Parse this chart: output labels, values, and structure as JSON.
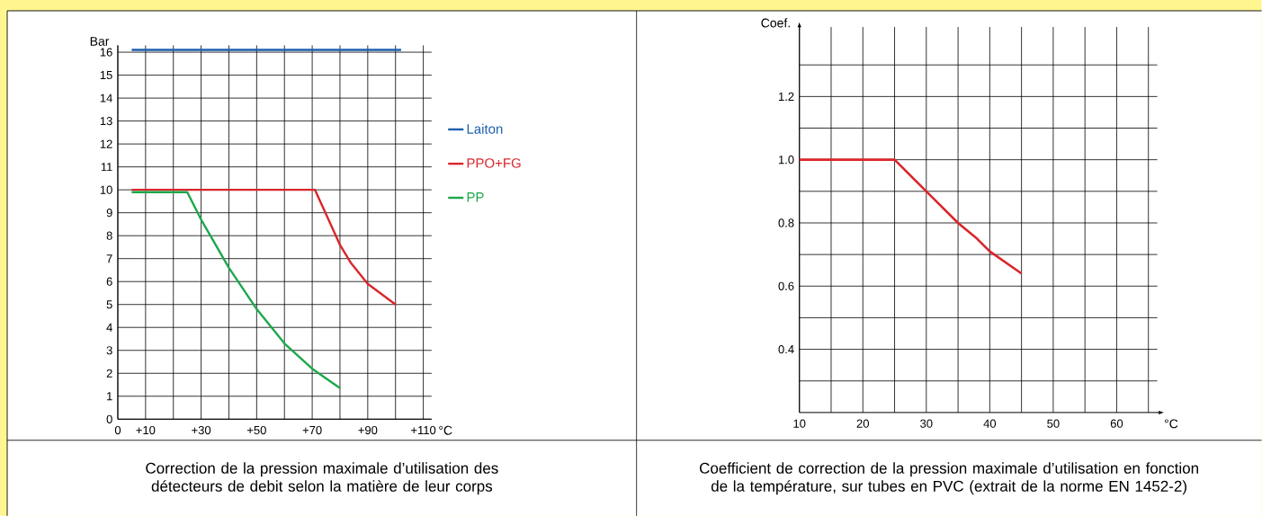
{
  "chart_data": [
    {
      "type": "line",
      "ylabel": "Bar",
      "xlabel": "°C",
      "xlim": [
        0,
        113
      ],
      "ylim": [
        0,
        16.3
      ],
      "xticks": [
        {
          "value": 0,
          "label": "0"
        },
        {
          "value": 10,
          "label": "+10"
        },
        {
          "value": 20,
          "label": null
        },
        {
          "value": 30,
          "label": "+30"
        },
        {
          "value": 40,
          "label": null
        },
        {
          "value": 50,
          "label": "+50"
        },
        {
          "value": 60,
          "label": null
        },
        {
          "value": 70,
          "label": "+70"
        },
        {
          "value": 80,
          "label": null
        },
        {
          "value": 90,
          "label": "+90"
        },
        {
          "value": 100,
          "label": null
        },
        {
          "value": 110,
          "label": "+110"
        }
      ],
      "yticks": [
        0,
        1,
        2,
        3,
        4,
        5,
        6,
        7,
        8,
        9,
        10,
        11,
        12,
        13,
        14,
        15,
        16
      ],
      "grid": true,
      "legend": "right",
      "marker": "none",
      "line_style": "solid",
      "series": [
        {
          "name": "Laiton",
          "color": "#1f5fae",
          "x": [
            5,
            102
          ],
          "values": [
            16.1,
            16.1
          ]
        },
        {
          "name": "PPO+FG",
          "color": "#d9262b",
          "x": [
            5,
            71,
            80,
            84,
            90,
            100
          ],
          "values": [
            10,
            10,
            7.6,
            6.8,
            5.9,
            5
          ]
        },
        {
          "name": "PP",
          "color": "#1ca84a",
          "x": [
            5,
            25,
            30,
            40,
            50,
            60,
            70,
            80
          ],
          "values": [
            9.9,
            9.9,
            8.7,
            6.6,
            4.8,
            3.3,
            2.2,
            1.35
          ]
        }
      ],
      "annotations": [
        "Correction de la pression maximale d’utilisation des détecteurs de debit selon la matière de leur corps"
      ]
    },
    {
      "type": "line",
      "ylabel": "Coef.",
      "xlabel": "°C",
      "xlim": [
        10,
        66.4
      ],
      "ylim": [
        0.2,
        1.42
      ],
      "xticks": [
        10,
        {
          "value": 15,
          "label": null
        },
        20,
        {
          "value": 25,
          "label": null
        },
        30,
        {
          "value": 35,
          "label": null
        },
        40,
        {
          "value": 45,
          "label": null
        },
        50,
        {
          "value": 55,
          "label": null
        },
        60,
        {
          "value": 65,
          "label": null
        }
      ],
      "yticks": [
        {
          "value": 0.3,
          "label": null
        },
        {
          "value": 0.4,
          "label": "0.4"
        },
        {
          "value": 0.5,
          "label": null
        },
        {
          "value": 0.6,
          "label": "0.6"
        },
        {
          "value": 0.7,
          "label": null
        },
        {
          "value": 0.8,
          "label": "0.8"
        },
        {
          "value": 0.9,
          "label": null
        },
        {
          "value": 1.0,
          "label": "1.0"
        },
        {
          "value": 1.1,
          "label": null
        },
        {
          "value": 1.2,
          "label": "1.2"
        },
        {
          "value": 1.3,
          "label": null
        }
      ],
      "grid": true,
      "marker": "none",
      "line_style": "solid",
      "series": [
        {
          "color": "#d9262b",
          "x": [
            10,
            25,
            30,
            35,
            38,
            40,
            45
          ],
          "values": [
            1.0,
            1.0,
            0.9,
            0.8,
            0.75,
            0.71,
            0.64
          ]
        }
      ],
      "annotations": [
        "Coefficient de correction de la pression maximale d’utilisation en fonction de la température, sur tubes en PVC (extrait de la norme EN 1452-2)"
      ]
    }
  ]
}
